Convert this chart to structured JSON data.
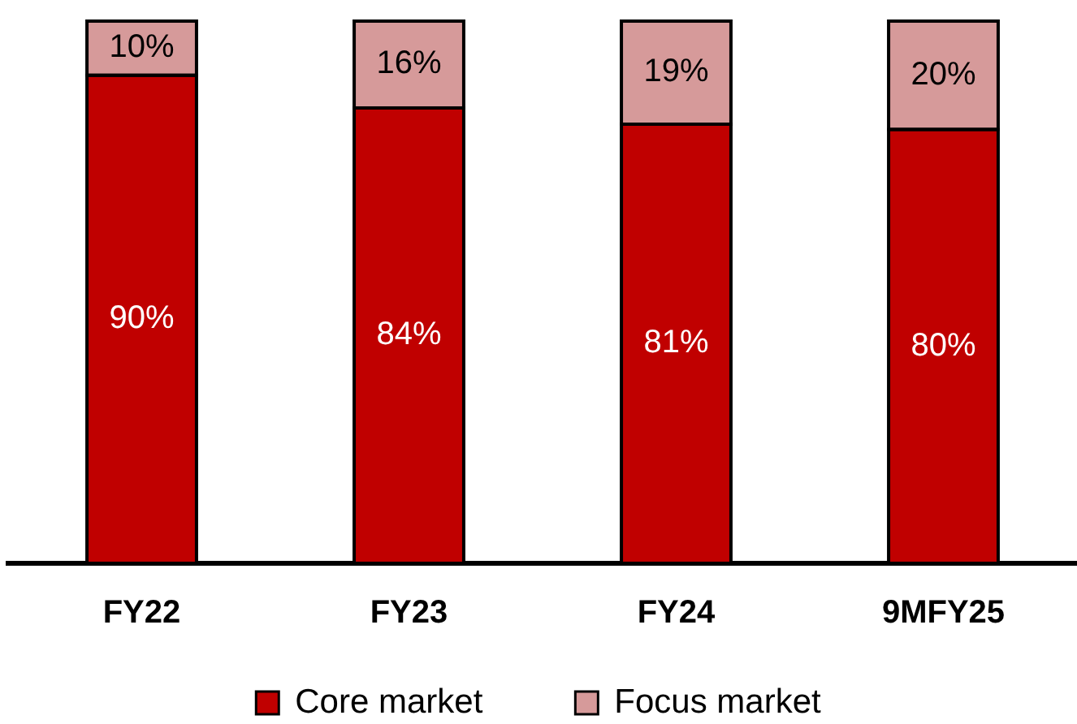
{
  "chart_data": {
    "type": "bar",
    "stacked": true,
    "categories": [
      "FY22",
      "FY23",
      "FY24",
      "9MFY25"
    ],
    "series": [
      {
        "name": "Core market",
        "color": "#c00000",
        "values": [
          90,
          84,
          81,
          80
        ],
        "value_labels": [
          "90%",
          "84%",
          "81%",
          "80%"
        ]
      },
      {
        "name": "Focus market",
        "color": "#d69a9a",
        "values": [
          10,
          16,
          19,
          20
        ],
        "value_labels": [
          "10%",
          "16%",
          "19%",
          "20%"
        ]
      }
    ],
    "ylim": [
      0,
      100
    ],
    "tick_labels": "x",
    "grid": false,
    "legend": "bottom"
  }
}
